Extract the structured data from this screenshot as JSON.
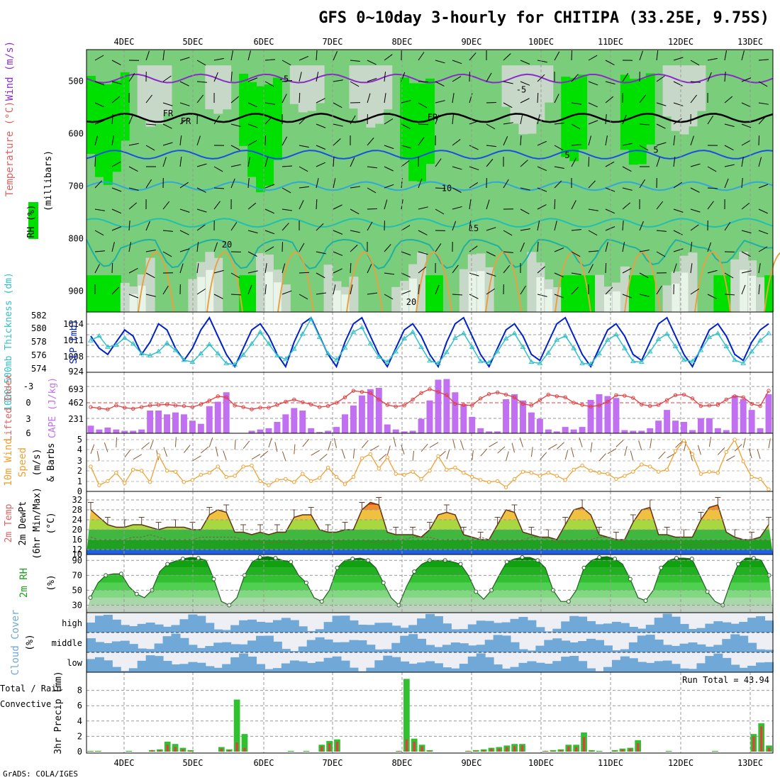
{
  "title": "GFS 0~10day 3-hourly for CHITIPA (33.25E, 9.75S)",
  "credit": "GrADS: COLA/IGES",
  "dates": [
    "4DEC",
    "5DEC",
    "6DEC",
    "7DEC",
    "8DEC",
    "9DEC",
    "10DEC",
    "11DEC",
    "12DEC",
    "13DEC"
  ],
  "chart_data": [
    {
      "type": "heatmap",
      "panel": "upper-air",
      "ylabel_parts": [
        "Wind (m/s)",
        "Temperature (°C)",
        "RH (%)"
      ],
      "yunit": "(millibars)",
      "ylim": [
        440,
        940
      ],
      "yticks": [
        500,
        600,
        700,
        800,
        900
      ],
      "isotherm_labels": [
        {
          "label": "-5",
          "level": 515
        },
        {
          "label": "-5",
          "level": 495
        },
        {
          "label": "FR",
          "level": 560
        },
        {
          "label": "FR",
          "level": 575
        },
        {
          "label": "FR",
          "level": 568
        },
        {
          "label": "5",
          "level": 630
        },
        {
          "label": "5",
          "level": 640
        },
        {
          "label": "10",
          "level": 703
        },
        {
          "label": "15",
          "level": 779
        },
        {
          "label": "20",
          "level": 810
        },
        {
          "label": "20",
          "level": 920
        }
      ],
      "isotherms": [
        {
          "label": "-5",
          "base": 495
        },
        {
          "label": "FR",
          "base": 570
        },
        {
          "label": "5",
          "base": 640
        },
        {
          "label": "10",
          "base": 700
        },
        {
          "label": "15",
          "base": 770
        },
        {
          "label": "20",
          "base": 810
        }
      ]
    },
    {
      "type": "line",
      "panel": "thickness-slp",
      "ylabel_left": "1000~500mb Thickness (dm)",
      "ylabel_right": "SLP (mb)",
      "left_ticks": [
        "582",
        "580",
        "578",
        "576",
        "574"
      ],
      "right_ticks": [
        "1014",
        "1011",
        "1008",
        "924"
      ],
      "series": [
        {
          "name": "SLP",
          "values": [
            1012,
            1010,
            1009,
            1011,
            1013,
            1012,
            1009,
            1011,
            1014,
            1013,
            1010,
            1008,
            1010,
            1013,
            1015,
            1012,
            1009,
            1007,
            1010,
            1013,
            1014,
            1012,
            1009,
            1007,
            1011,
            1014,
            1015,
            1012,
            1009,
            1007,
            1011,
            1014,
            1015,
            1012,
            1009,
            1007,
            1010,
            1013,
            1014,
            1012,
            1009,
            1007,
            1011,
            1014,
            1015,
            1012,
            1009,
            1007,
            1010,
            1013,
            1014,
            1012,
            1009,
            1008,
            1011,
            1014,
            1015,
            1012,
            1009,
            1007,
            1010,
            1013,
            1014,
            1012,
            1009,
            1008,
            1011,
            1014,
            1015,
            1012,
            1009,
            1007,
            1010,
            1013,
            1014,
            1012,
            1009,
            1008,
            1011,
            1013,
            1014
          ]
        },
        {
          "name": "Thickness",
          "values": [
            578.5,
            579.2,
            577.5,
            577.8,
            578.9,
            578.0,
            576.5,
            576.2,
            576.8,
            578.1,
            577.0,
            575.5,
            575.2,
            576.5,
            577.9,
            576.5,
            575.0,
            574.8,
            576.3,
            578.0,
            579.8,
            578.0,
            576.2,
            575.6,
            577.2,
            579.5,
            581.8,
            579.0,
            576.5,
            575.5,
            577.4,
            579.8,
            580.5,
            578.0,
            576.0,
            575.2,
            576.8,
            578.8,
            579.8,
            577.5,
            575.4,
            575.0,
            576.7,
            578.9,
            579.6,
            577.5,
            575.3,
            575.1,
            576.8,
            578.8,
            579.6,
            577.5,
            575.2,
            575.0,
            576.6,
            578.6,
            579.2,
            577.3,
            575.0,
            574.9,
            576.5,
            578.6,
            579.4,
            577.3,
            575.3,
            575.2,
            576.8,
            578.7,
            579.5,
            577.6,
            575.5,
            575.3,
            577.0,
            579.0,
            579.6,
            577.6,
            575.5,
            575.0,
            576.8,
            578.5,
            579.6
          ]
        }
      ]
    },
    {
      "type": "bar",
      "panel": "cape-li",
      "ylabel_left": "Lifted Index",
      "ylabel_right": "CAPE (J/kg)",
      "left_ticks": [
        "-3",
        "0",
        "3",
        "6"
      ],
      "right_ticks": [
        "693",
        "462",
        "231"
      ],
      "cape": [
        120,
        60,
        90,
        60,
        40,
        40,
        60,
        360,
        360,
        300,
        330,
        300,
        200,
        150,
        430,
        500,
        650,
        0,
        0,
        40,
        60,
        80,
        180,
        300,
        400,
        360,
        80,
        20,
        40,
        100,
        300,
        440,
        600,
        700,
        720,
        140,
        60,
        30,
        40,
        230,
        520,
        850,
        860,
        650,
        460,
        260,
        80,
        30,
        30,
        540,
        620,
        520,
        330,
        230,
        60,
        30,
        100,
        60,
        100,
        530,
        620,
        590,
        560,
        50,
        40,
        40,
        80,
        200,
        370,
        200,
        180,
        50,
        240,
        240,
        80,
        50,
        600,
        540,
        370,
        80,
        620
      ],
      "lifted_index": [
        0.8,
        1.0,
        1.2,
        0.5,
        0.9,
        1.1,
        0.8,
        0.5,
        0.4,
        0.3,
        0.5,
        0.6,
        0.8,
        0.3,
        -0.4,
        -1.2,
        -1.0,
        0.5,
        0.8,
        1.2,
        0.9,
        0.9,
        0.4,
        -0.2,
        -0.6,
        -0.1,
        0.3,
        0.8,
        0.6,
        0.0,
        -1.0,
        -2.2,
        -2.0,
        -1.8,
        -0.6,
        0.4,
        0.7,
        0.5,
        -0.6,
        -1.8,
        -2.5,
        -2.0,
        -1.4,
        0.2,
        0.4,
        0.5,
        -0.8,
        -1.6,
        -1.9,
        -1.5,
        -1.0,
        0.2,
        0.5,
        -0.5,
        -1.5,
        -1.2,
        -1.0,
        0.0,
        0.4,
        0.7,
        0.5,
        -0.2,
        -1.4,
        -1.3,
        -0.9,
        0.3,
        0.6,
        0.4,
        -0.5,
        -1.4,
        -1.5,
        -0.8,
        0.6,
        0.5,
        0.4,
        -0.6,
        -1.2,
        -1.0,
        0.2,
        0.6,
        -2.2
      ]
    },
    {
      "type": "line",
      "panel": "wind10m",
      "ylabel": "10m Wind Speed (m/s) & Barbs",
      "ticks": [
        "5",
        "4",
        "3",
        "2",
        "1",
        "0"
      ],
      "values": [
        2.4,
        0.6,
        1.0,
        1.8,
        0.8,
        2.1,
        2.0,
        0.9,
        3.5,
        2.0,
        1.9,
        0.9,
        1.1,
        1.6,
        1.8,
        2.4,
        1.4,
        1.5,
        2.4,
        2.5,
        1.0,
        0.6,
        1.1,
        1.2,
        0.9,
        1.7,
        1.0,
        1.3,
        2.3,
        1.4,
        0.7,
        1.4,
        3.2,
        3.6,
        2.2,
        3.3,
        1.7,
        1.6,
        1.9,
        1.2,
        2.0,
        3.4,
        2.1,
        2.3,
        1.8,
        1.4,
        1.1,
        0.9,
        1.0,
        0.4,
        1.2,
        1.9,
        1.8,
        1.5,
        1.8,
        1.5,
        1.1,
        2.1,
        2.5,
        2.0,
        1.8,
        1.7,
        1.2,
        1.5,
        1.9,
        2.6,
        2.4,
        1.9,
        2.1,
        3.9,
        4.9,
        3.6,
        1.7,
        1.9,
        1.8,
        3.8,
        5.0,
        2.9,
        1.4,
        1.2,
        0.2
      ]
    },
    {
      "type": "area",
      "panel": "temp2m",
      "ylabel": "2m Temp 2m DewPt (6hr Min/Max) (°C)",
      "ticks": [
        "32",
        "28",
        "24",
        "20",
        "16",
        "12",
        "10"
      ],
      "temp": [
        28,
        25,
        22,
        21,
        21,
        22,
        22,
        21,
        20,
        21,
        21,
        21,
        20,
        20,
        26,
        28,
        27,
        19,
        19,
        18,
        19,
        18,
        19,
        19,
        25,
        26,
        26,
        20,
        19,
        19,
        20,
        20,
        28,
        31,
        30,
        19,
        18,
        18,
        18,
        17,
        20,
        26,
        27,
        26,
        18,
        17,
        16,
        16,
        22,
        28,
        27,
        19,
        18,
        17,
        17,
        16,
        22,
        28,
        29,
        26,
        18,
        17,
        16,
        16,
        23,
        28,
        29,
        18,
        18,
        17,
        17,
        17,
        24,
        29,
        30,
        19,
        17,
        16,
        16,
        17,
        22
      ],
      "dewpt": [
        17,
        16,
        16,
        16,
        16,
        17,
        17,
        18,
        17,
        16,
        16,
        16,
        16,
        17,
        17,
        17,
        17,
        17,
        16,
        16,
        15,
        15,
        15,
        15,
        14,
        14,
        15,
        15,
        15,
        15,
        16,
        16,
        16,
        15,
        15,
        15,
        16,
        16,
        17,
        17,
        17,
        16,
        16,
        16,
        16,
        16,
        17,
        16,
        15,
        15,
        15,
        16,
        17,
        17,
        16,
        15,
        15,
        15,
        16,
        16,
        17,
        17,
        16,
        15,
        14,
        14,
        14,
        15,
        15,
        15,
        14,
        14,
        14,
        14,
        15,
        15,
        16,
        16,
        16,
        16,
        16
      ]
    },
    {
      "type": "area",
      "panel": "rh2m",
      "ylabel": "2m RH (%)",
      "ticks": [
        "90",
        "70",
        "50",
        "30"
      ],
      "values": [
        40,
        60,
        70,
        72,
        72,
        55,
        45,
        40,
        50,
        75,
        85,
        89,
        92,
        94,
        93,
        90,
        65,
        35,
        30,
        40,
        70,
        88,
        94,
        95,
        93,
        90,
        88,
        70,
        60,
        40,
        35,
        50,
        80,
        90,
        92,
        93,
        90,
        80,
        60,
        40,
        30,
        55,
        75,
        85,
        90,
        90,
        90,
        88,
        85,
        70,
        48,
        38,
        50,
        70,
        88,
        92,
        94,
        94,
        90,
        80,
        50,
        35,
        35,
        50,
        80,
        90,
        94,
        95,
        92,
        85,
        65,
        40,
        36,
        50,
        80,
        90,
        93,
        93,
        92,
        70,
        48,
        35,
        30,
        60,
        85,
        93,
        93,
        90,
        70
      ]
    },
    {
      "type": "heatmap",
      "panel": "cloud-cover",
      "ylabel": "Cloud Cover (%)",
      "rows": [
        "high",
        "middle",
        "low"
      ]
    },
    {
      "type": "bar",
      "panel": "precip",
      "ylabel_left": "3hr Precip (mm)",
      "ylabel_parts": [
        "Total / Rain",
        "Convective"
      ],
      "ticks": [
        "8",
        "6",
        "4",
        "2",
        "0"
      ],
      "annotation": "Run Total = 43.94",
      "total": [
        0.1,
        0.1,
        0,
        0,
        0,
        0.1,
        0,
        0,
        0.2,
        0.3,
        1.3,
        1.0,
        0.5,
        0.2,
        0,
        0,
        0,
        0.6,
        0.3,
        6.8,
        2.3,
        0,
        0,
        0,
        0,
        0,
        0.1,
        0,
        0.1,
        0,
        0.9,
        1.4,
        1.6,
        0,
        0,
        0,
        0,
        0,
        0,
        0,
        0.1,
        9.5,
        1.7,
        0.9,
        0.2,
        0,
        0,
        0,
        0,
        0.1,
        0.2,
        0.3,
        0.5,
        0.6,
        0.8,
        1.0,
        1.0,
        0,
        0,
        0.1,
        0.2,
        0.3,
        0.9,
        0.9,
        2.5,
        0.2,
        0.1,
        0,
        0.2,
        0.4,
        0.5,
        1.5,
        0,
        0,
        0,
        0.1,
        0,
        0,
        0,
        0,
        0,
        0.1,
        0,
        0,
        0,
        0,
        2.3,
        3.7,
        0.8
      ],
      "conv": [
        0,
        0,
        0,
        0,
        0,
        0,
        0,
        0,
        0.2,
        0.2,
        0.9,
        0.6,
        0.3,
        0.1,
        0,
        0,
        0,
        0.4,
        0.2,
        1.2,
        0.5,
        0,
        0,
        0,
        0,
        0,
        0,
        0,
        0,
        0,
        0.7,
        1.1,
        1.3,
        0,
        0,
        0,
        0,
        0,
        0,
        0,
        0.1,
        1.6,
        1.3,
        0.7,
        0.1,
        0,
        0,
        0,
        0,
        0.1,
        0.1,
        0.2,
        0.4,
        0.4,
        0.6,
        0.7,
        0.8,
        0,
        0,
        0.1,
        0.1,
        0.2,
        0.7,
        0.6,
        1.9,
        0.1,
        0,
        0,
        0.1,
        0.3,
        0.4,
        1.1,
        0,
        0,
        0,
        0,
        0,
        0,
        0,
        0,
        0,
        0,
        0,
        0,
        0,
        0,
        2.0,
        3.3,
        0.5
      ]
    }
  ],
  "colors": {
    "rh_dark": "#00e000",
    "rh_mid": "#7acd7a",
    "rh_light": "#c8d8c8",
    "rh_pale": "#e8f4e8",
    "slp_line": "#0020c8",
    "thick_line": "#30c0c8",
    "cape_bar": "#c070f0",
    "li_line": "#e04040",
    "wind_line": "#f0a030",
    "cloud": "#70a8d8",
    "precip_total": "#30c030",
    "precip_conv": "#e04040"
  }
}
